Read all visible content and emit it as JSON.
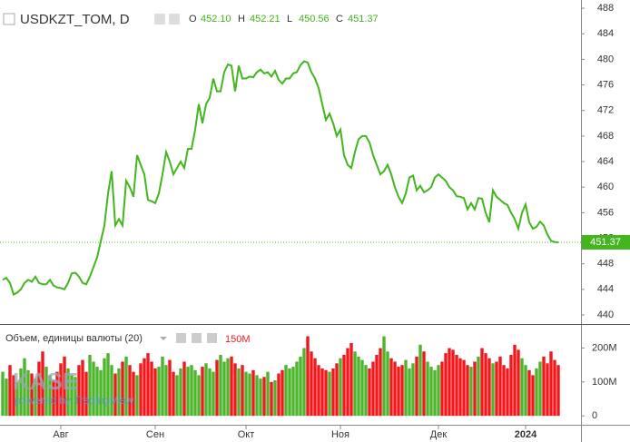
{
  "chart_data": [
    {
      "type": "line",
      "title": "USDKZT_TOM, D",
      "color": "#43b51d",
      "ohlc": [
        {
          "name": "O",
          "value": 452.1,
          "label": "452.10"
        },
        {
          "name": "H",
          "value": 452.21,
          "label": "452.21"
        },
        {
          "name": "L",
          "value": 450.56,
          "label": "450.56"
        },
        {
          "name": "C",
          "value": 451.37,
          "label": "451.37"
        }
      ],
      "watermark": {
        "logo": "KASE",
        "text": "powered by TradingView"
      },
      "xlim": [
        -0.75,
        159.25
      ],
      "ylim": [
        438.58,
        489.29
      ],
      "yticks": [
        440,
        444,
        448,
        452,
        456,
        460,
        464,
        468,
        472,
        476,
        480,
        484,
        488
      ],
      "values": [
        445.5,
        445.8,
        445,
        443.2,
        443.5,
        444,
        445,
        445.5,
        445.2,
        446,
        445,
        444.8,
        444.8,
        445.5,
        444.6,
        444.3,
        444.2,
        444,
        445,
        446.5,
        446.6,
        446,
        445,
        444.8,
        446,
        447.5,
        449,
        451.5,
        454,
        459,
        462.5,
        454,
        455,
        454,
        461,
        460,
        458.5,
        465,
        463.5,
        462,
        458,
        457.8,
        457.5,
        459,
        462,
        465.5,
        464,
        462,
        463,
        464,
        463,
        466,
        466,
        469,
        473,
        470,
        473,
        474,
        477,
        475,
        475,
        478,
        479.2,
        479,
        475,
        479,
        477,
        477,
        477.3,
        477.2,
        478,
        478.4,
        477.8,
        478,
        477.3,
        478.2,
        476.8,
        476.2,
        477,
        477,
        477.8,
        478,
        479.1,
        479.7,
        479.5,
        478,
        477,
        475.5,
        473,
        470.5,
        471.5,
        470,
        468,
        469,
        465,
        463.5,
        463,
        465.5,
        467.5,
        468,
        468,
        467,
        465,
        463.5,
        462,
        462.5,
        463.5,
        462,
        460,
        458.5,
        457.5,
        459,
        461.5,
        461.8,
        459.5,
        460.2,
        459.2,
        459.5,
        460,
        461.5,
        462,
        461.5,
        461,
        460,
        459.5,
        458.6,
        458.5,
        458.3,
        456.5,
        457.5,
        456.5,
        458.3,
        458.2,
        456,
        454.5,
        459.5,
        458.5,
        458,
        457.5,
        457.2,
        456,
        455,
        453.5,
        456,
        457.3,
        454.5,
        453.5,
        453.8,
        454.6,
        454,
        452.6,
        451.6,
        451.4,
        451.37
      ]
    },
    {
      "type": "bar",
      "title": "Объем, единицы валюты (20)",
      "up_color": "#4db52b",
      "down_color": "#f0181c",
      "legend_value": {
        "value": 150,
        "label": "150M"
      },
      "xlim": [
        -0.75,
        159.25
      ],
      "xticks": [
        {
          "value": 16,
          "label": "Авг"
        },
        {
          "value": 42,
          "label": "Сен"
        },
        {
          "value": 67,
          "label": "Окт"
        },
        {
          "value": 93,
          "label": "Ноя"
        },
        {
          "value": 120,
          "label": "Дек"
        },
        {
          "value": 144,
          "label": "2024"
        }
      ],
      "ylim": [
        -26.3,
        268.4
      ],
      "yticks": [
        {
          "value": 0,
          "label": "0"
        },
        {
          "value": 100,
          "label": "100M"
        },
        {
          "value": 200,
          "label": "200M"
        }
      ],
      "values": [
        130,
        110,
        150,
        120,
        100,
        140,
        170,
        135,
        125,
        110,
        160,
        190,
        145,
        120,
        105,
        130,
        155,
        175,
        140,
        120,
        115,
        150,
        165,
        130,
        180,
        160,
        145,
        135,
        170,
        185,
        150,
        125,
        140,
        160,
        175,
        150,
        130,
        120,
        155,
        170,
        185,
        160,
        140,
        145,
        175,
        150,
        165,
        130,
        120,
        140,
        160,
        145,
        150,
        135,
        120,
        145,
        155,
        140,
        130,
        165,
        180,
        160,
        170,
        175,
        155,
        140,
        150,
        130,
        125,
        135,
        120,
        110,
        115,
        130,
        100,
        105,
        125,
        135,
        150,
        140,
        145,
        160,
        175,
        200,
        235,
        190,
        170,
        150,
        140,
        135,
        130,
        140,
        155,
        170,
        180,
        200,
        215,
        190,
        175,
        165,
        150,
        140,
        160,
        180,
        200,
        235,
        190,
        170,
        160,
        145,
        150,
        165,
        140,
        155,
        175,
        210,
        190,
        160,
        145,
        135,
        150,
        160,
        185,
        200,
        195,
        180,
        170,
        165,
        150,
        145,
        160,
        175,
        200,
        185,
        170,
        155,
        160,
        175,
        150,
        140,
        180,
        210,
        195,
        170,
        150,
        135,
        120,
        140,
        160,
        175,
        155,
        190,
        165,
        150
      ]
    }
  ]
}
